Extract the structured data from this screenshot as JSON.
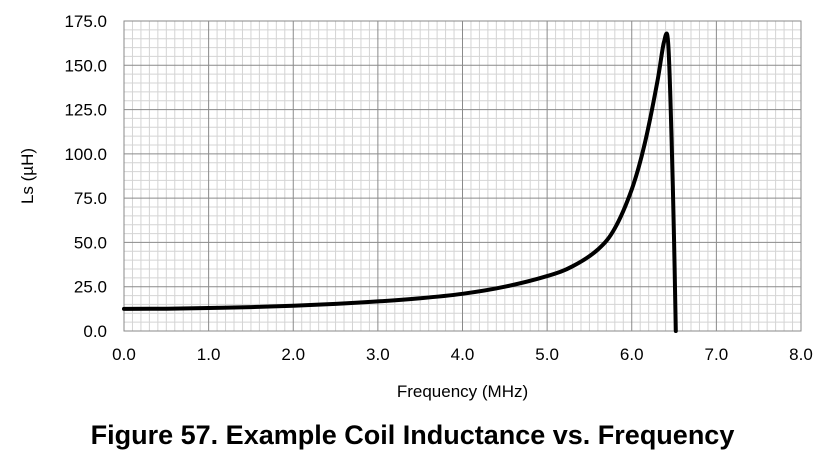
{
  "caption": "Figure 57.  Example Coil Inductance vs. Frequency",
  "chart_data": {
    "type": "line",
    "title": "",
    "xlabel": "Frequency (MHz)",
    "ylabel": "Ls (µH)",
    "xlim": [
      0,
      8
    ],
    "ylim": [
      0,
      175
    ],
    "xticks": [
      "0.0",
      "1.0",
      "2.0",
      "3.0",
      "4.0",
      "5.0",
      "6.0",
      "7.0",
      "8.0"
    ],
    "yticks": [
      "0.0",
      "25.0",
      "50.0",
      "75.0",
      "100.0",
      "125.0",
      "150.0",
      "175.0"
    ],
    "grid": true,
    "minor_grid": true,
    "line_color": "#000000",
    "series": [
      {
        "x": [
          0.0,
          0.5,
          1.0,
          1.5,
          2.0,
          2.5,
          3.0,
          3.5,
          4.0,
          4.5,
          5.0,
          5.3,
          5.6,
          5.8,
          6.0,
          6.15,
          6.3,
          6.38,
          6.43,
          6.47,
          6.5,
          6.52
        ],
        "y": [
          12.5,
          12.6,
          13.0,
          13.5,
          14.3,
          15.3,
          16.7,
          18.5,
          21.0,
          25.0,
          31.0,
          36.5,
          46.0,
          58.0,
          80.0,
          105.0,
          140.0,
          163.0,
          163.0,
          110.0,
          50.0,
          0.0
        ]
      }
    ]
  }
}
